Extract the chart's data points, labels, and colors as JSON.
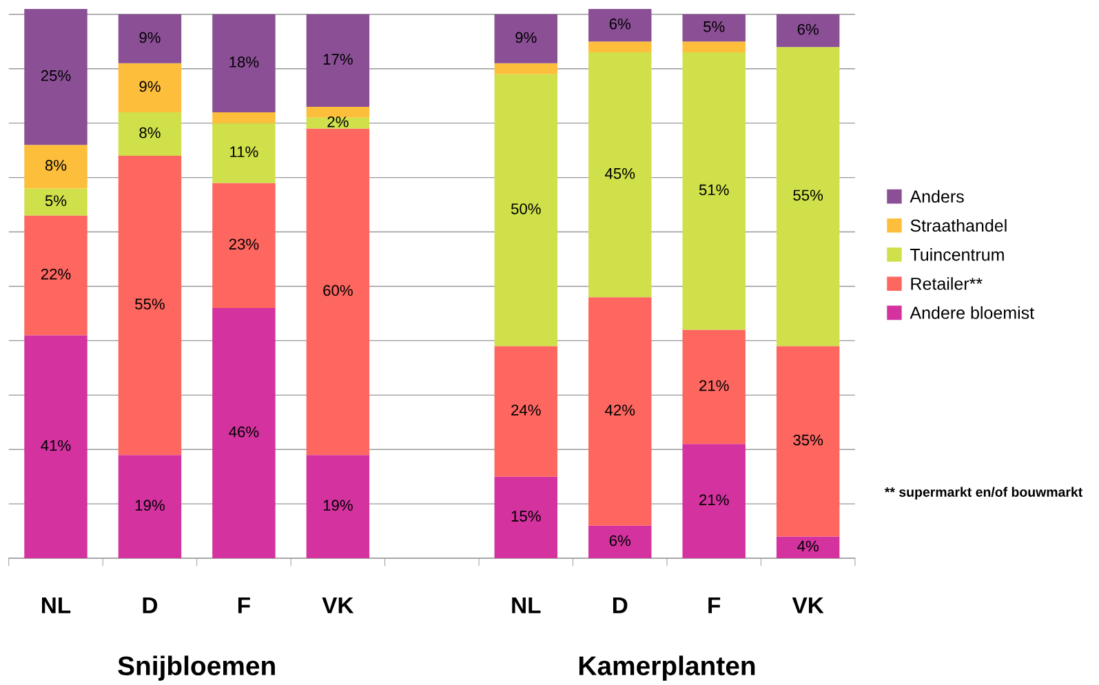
{
  "chart_data": {
    "type": "bar",
    "stacked": true,
    "categories": [
      "NL",
      "D",
      "F",
      "VK",
      null,
      "NL",
      "D",
      "F",
      "VK"
    ],
    "series": [
      {
        "name": "Andere bloemist",
        "color": "#d3329f",
        "values": [
          41,
          19,
          46,
          19,
          null,
          15,
          6,
          21,
          4
        ],
        "value_labels": [
          "41%",
          "19%",
          "46%",
          "19%",
          null,
          "15%",
          "6%",
          "21%",
          "4%"
        ]
      },
      {
        "name": "Retailer**",
        "color": "#fe6660",
        "values": [
          22,
          55,
          23,
          60,
          null,
          24,
          42,
          21,
          35
        ],
        "value_labels": [
          "22%",
          "55%",
          "23%",
          "60%",
          null,
          "24%",
          "42%",
          "21%",
          "35%"
        ]
      },
      {
        "name": "Tuincentrum",
        "color": "#cfe04a",
        "values": [
          5,
          8,
          11,
          2,
          null,
          50,
          45,
          51,
          55
        ],
        "value_labels": [
          "5%",
          "8%",
          "11%",
          "2%",
          null,
          "50%",
          "45%",
          "51%",
          "55%"
        ]
      },
      {
        "name": "Straathandel",
        "color": "#fdbf3b",
        "values": [
          8,
          9,
          2,
          2,
          null,
          2,
          2,
          2,
          null
        ],
        "value_labels": [
          "8%",
          "9%",
          null,
          null,
          null,
          null,
          null,
          null,
          null
        ]
      },
      {
        "name": "Anders",
        "color": "#8b4f96",
        "values": [
          25,
          9,
          18,
          17,
          null,
          9,
          6,
          5,
          6
        ],
        "value_labels": [
          "25%",
          "9%",
          "18%",
          "17%",
          null,
          "9%",
          "6%",
          "5%",
          "6%"
        ]
      }
    ],
    "ylim": [
      0,
      101
    ],
    "yticks": [
      {
        "value": 0,
        "label": null
      },
      {
        "value": 10,
        "label": null
      },
      {
        "value": 20,
        "label": null
      },
      {
        "value": 30,
        "label": null
      },
      {
        "value": 40,
        "label": null
      },
      {
        "value": 50,
        "label": null
      },
      {
        "value": 60,
        "label": null
      },
      {
        "value": 70,
        "label": null
      },
      {
        "value": 80,
        "label": null
      },
      {
        "value": 90,
        "label": null
      },
      {
        "value": 100,
        "label": null
      }
    ],
    "tick_labels": "x",
    "grid": "y",
    "legend": "right",
    "annotations": [
      "Snijbloemen",
      "Kamerplanten",
      "** supermarkt en/of bouwmarkt"
    ]
  }
}
